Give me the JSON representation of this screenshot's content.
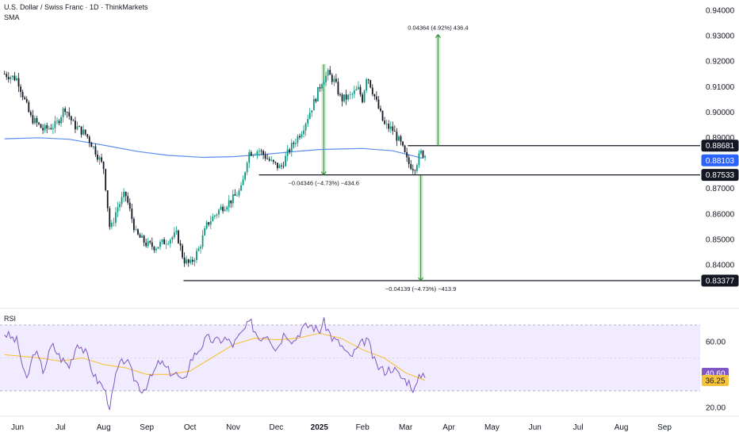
{
  "header": {
    "symbol_line": "U.S. Dollar / Swiss Franc · 1D · ThinkMarkets",
    "indicator": "SMA"
  },
  "chart_data": [
    {
      "type": "candlestick",
      "title": "U.S. Dollar / Swiss Franc · 1D · ThinkMarkets",
      "indicator": "SMA",
      "y_ticks": [
        "0.94000",
        "0.93000",
        "0.92000",
        "0.91000",
        "0.90000",
        "0.89000",
        "0.87000",
        "0.86000",
        "0.85000",
        "0.84000"
      ],
      "ylim": [
        0.8275,
        0.9425
      ],
      "x_ticks": [
        "Jun",
        "Jul",
        "Aug",
        "Sep",
        "Oct",
        "Nov",
        "Dec",
        "2025",
        "Feb",
        "Mar",
        "Apr",
        "May",
        "Jun",
        "Jul",
        "Aug",
        "Sep"
      ],
      "x_tick_months": [
        0,
        1,
        2,
        3,
        4,
        5,
        6,
        7,
        8,
        9,
        10,
        11,
        12,
        13,
        14,
        15
      ],
      "close_path": [
        [
          -0.3,
          0.915
        ],
        [
          0.0,
          0.913
        ],
        [
          0.3,
          0.898
        ],
        [
          0.6,
          0.893
        ],
        [
          0.9,
          0.895
        ],
        [
          1.1,
          0.902
        ],
        [
          1.3,
          0.895
        ],
        [
          1.6,
          0.891
        ],
        [
          1.8,
          0.885
        ],
        [
          2.0,
          0.878
        ],
        [
          2.15,
          0.853
        ],
        [
          2.3,
          0.862
        ],
        [
          2.5,
          0.868
        ],
        [
          2.75,
          0.852
        ],
        [
          3.0,
          0.848
        ],
        [
          3.2,
          0.847
        ],
        [
          3.5,
          0.85
        ],
        [
          3.7,
          0.852
        ],
        [
          3.85,
          0.842
        ],
        [
          4.0,
          0.84
        ],
        [
          4.2,
          0.846
        ],
        [
          4.4,
          0.856
        ],
        [
          4.7,
          0.862
        ],
        [
          5.0,
          0.866
        ],
        [
          5.2,
          0.87
        ],
        [
          5.35,
          0.884
        ],
        [
          5.6,
          0.885
        ],
        [
          5.9,
          0.88
        ],
        [
          6.1,
          0.878
        ],
        [
          6.3,
          0.885
        ],
        [
          6.6,
          0.893
        ],
        [
          6.9,
          0.905
        ],
        [
          7.05,
          0.912
        ],
        [
          7.2,
          0.915
        ],
        [
          7.35,
          0.912
        ],
        [
          7.5,
          0.905
        ],
        [
          7.7,
          0.906
        ],
        [
          7.9,
          0.909
        ],
        [
          8.0,
          0.905
        ],
        [
          8.1,
          0.915
        ],
        [
          8.3,
          0.905
        ],
        [
          8.5,
          0.895
        ],
        [
          8.7,
          0.893
        ],
        [
          8.9,
          0.887
        ],
        [
          9.05,
          0.88
        ],
        [
          9.2,
          0.878
        ],
        [
          9.35,
          0.884
        ],
        [
          9.45,
          0.883
        ]
      ],
      "sma_path": [
        [
          -0.3,
          0.8895
        ],
        [
          0.5,
          0.8899
        ],
        [
          1.2,
          0.8893
        ],
        [
          2.0,
          0.887
        ],
        [
          2.8,
          0.8845
        ],
        [
          3.5,
          0.883
        ],
        [
          4.3,
          0.8822
        ],
        [
          5.0,
          0.8825
        ],
        [
          5.8,
          0.8835
        ],
        [
          6.5,
          0.8846
        ],
        [
          7.0,
          0.8853
        ],
        [
          7.5,
          0.8855
        ],
        [
          8.0,
          0.8857
        ],
        [
          8.7,
          0.8848
        ],
        [
          9.4,
          0.8818
        ]
      ],
      "price_labels": [
        {
          "value": 0.88681,
          "label": "0.88681",
          "style": "black"
        },
        {
          "value": 0.88103,
          "label": "0.88103",
          "style": "blue"
        },
        {
          "value": 0.87533,
          "label": "0.87533",
          "style": "black"
        },
        {
          "value": 0.83377,
          "label": "0.83377",
          "style": "black"
        }
      ],
      "horizontal_lines": [
        {
          "value": 0.88681,
          "from_month": 9.05
        },
        {
          "value": 0.87533,
          "from_month": 5.6
        },
        {
          "value": 0.83377,
          "from_month": 3.85
        }
      ],
      "measurements": [
        {
          "text": "0.04364 (4.92%) 436.4",
          "month": 9.75,
          "from": 0.88681,
          "to": 0.93045,
          "direction": "up"
        },
        {
          "text": "−0.04346 (−4.73%) −434.6",
          "month": 7.1,
          "from": 0.91879,
          "to": 0.87533,
          "direction": "down"
        },
        {
          "text": "−0.04139 (−4.73%) −413.9",
          "month": 9.35,
          "from": 0.87516,
          "to": 0.83377,
          "direction": "down"
        }
      ],
      "colors": {
        "up": "#089981",
        "down": "#131722",
        "sma": "#5b8def",
        "measure": "#2e7d32"
      }
    },
    {
      "type": "line",
      "title": "RSI",
      "ylim": [
        15,
        80
      ],
      "y_ticks": [
        "60.00",
        "20.00"
      ],
      "bands": [
        70,
        30
      ],
      "rsi_label": "40.60",
      "ma_label": "36.25",
      "rsi_path": [
        [
          -0.3,
          65
        ],
        [
          0.0,
          60
        ],
        [
          0.2,
          35
        ],
        [
          0.4,
          55
        ],
        [
          0.6,
          42
        ],
        [
          0.8,
          58
        ],
        [
          1.0,
          50
        ],
        [
          1.2,
          45
        ],
        [
          1.4,
          60
        ],
        [
          1.6,
          52
        ],
        [
          1.8,
          38
        ],
        [
          2.0,
          32
        ],
        [
          2.15,
          20
        ],
        [
          2.3,
          42
        ],
        [
          2.5,
          50
        ],
        [
          2.7,
          38
        ],
        [
          2.9,
          30
        ],
        [
          3.1,
          38
        ],
        [
          3.3,
          48
        ],
        [
          3.5,
          42
        ],
        [
          3.7,
          40
        ],
        [
          3.85,
          34
        ],
        [
          4.0,
          48
        ],
        [
          4.2,
          55
        ],
        [
          4.4,
          62
        ],
        [
          4.6,
          60
        ],
        [
          4.8,
          62
        ],
        [
          5.0,
          58
        ],
        [
          5.2,
          65
        ],
        [
          5.4,
          72
        ],
        [
          5.6,
          62
        ],
        [
          5.8,
          65
        ],
        [
          6.0,
          55
        ],
        [
          6.2,
          66
        ],
        [
          6.4,
          60
        ],
        [
          6.6,
          68
        ],
        [
          6.8,
          70
        ],
        [
          7.0,
          66
        ],
        [
          7.1,
          72
        ],
        [
          7.3,
          62
        ],
        [
          7.5,
          58
        ],
        [
          7.7,
          50
        ],
        [
          7.9,
          56
        ],
        [
          8.1,
          62
        ],
        [
          8.3,
          46
        ],
        [
          8.5,
          42
        ],
        [
          8.7,
          44
        ],
        [
          8.9,
          38
        ],
        [
          9.1,
          35
        ],
        [
          9.2,
          30
        ],
        [
          9.35,
          40
        ],
        [
          9.45,
          40.6
        ]
      ],
      "ma_path": [
        [
          -0.3,
          52
        ],
        [
          0.5,
          50
        ],
        [
          1.0,
          48
        ],
        [
          1.5,
          50
        ],
        [
          2.0,
          46
        ],
        [
          2.5,
          44
        ],
        [
          3.0,
          40
        ],
        [
          3.5,
          40
        ],
        [
          4.0,
          42
        ],
        [
          4.5,
          50
        ],
        [
          5.0,
          58
        ],
        [
          5.5,
          62
        ],
        [
          6.0,
          61
        ],
        [
          6.5,
          62
        ],
        [
          7.0,
          65
        ],
        [
          7.5,
          62
        ],
        [
          8.0,
          55
        ],
        [
          8.5,
          50
        ],
        [
          9.0,
          41
        ],
        [
          9.45,
          36.25
        ]
      ],
      "colors": {
        "rsi": "#7e57c2",
        "ma": "#f7c23b",
        "band_fill": "#f0ebff"
      }
    }
  ]
}
